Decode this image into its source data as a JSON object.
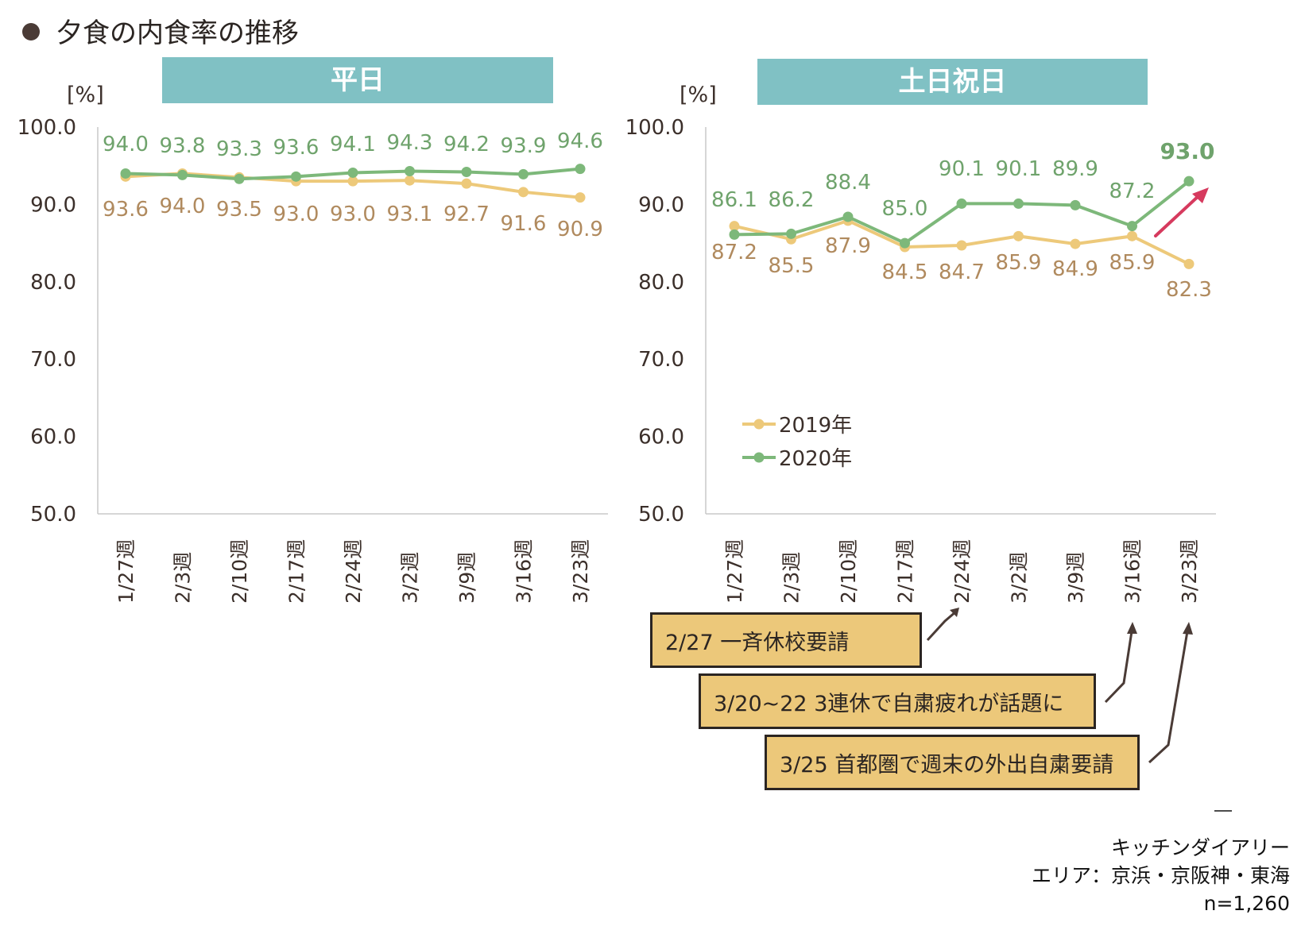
{
  "title": "夕食の内食率の推移",
  "panels": {
    "weekday": {
      "header": "平日",
      "unit": "[%]"
    },
    "weekend": {
      "header": "土日祝日",
      "unit": "[%]"
    }
  },
  "colors": {
    "series_2019": "#edc97a",
    "series_2020": "#7db87a",
    "label_2019": "#b08a5e",
    "label_2020": "#6fa36c",
    "header_bg": "#80c1c4",
    "note_bg": "#ecc87a",
    "trend_arrow": "#d63a5e"
  },
  "chart_data": [
    {
      "type": "line",
      "title": "平日",
      "ylabel": "[%]",
      "ylim": [
        50,
        100
      ],
      "yticks": [
        "100.0",
        "90.0",
        "80.0",
        "70.0",
        "60.0",
        "50.0"
      ],
      "categories": [
        "1/27週",
        "2/3週",
        "2/10週",
        "2/17週",
        "2/24週",
        "3/2週",
        "3/9週",
        "3/16週",
        "3/23週"
      ],
      "series": [
        {
          "name": "2019年",
          "values": [
            93.6,
            94.0,
            93.5,
            93.0,
            93.0,
            93.1,
            92.7,
            91.6,
            90.9
          ],
          "labels": [
            "93.6",
            "94.0",
            "93.5",
            "93.0",
            "93.0",
            "93.1",
            "92.7",
            "91.6",
            "90.9"
          ]
        },
        {
          "name": "2020年",
          "values": [
            94.0,
            93.8,
            93.3,
            93.6,
            94.1,
            94.3,
            94.2,
            93.9,
            94.6
          ],
          "labels": [
            "94.0",
            "93.8",
            "93.3",
            "93.6",
            "94.1",
            "94.3",
            "94.2",
            "93.9",
            "94.6"
          ]
        }
      ]
    },
    {
      "type": "line",
      "title": "土日祝日",
      "ylabel": "[%]",
      "ylim": [
        50,
        100
      ],
      "yticks": [
        "100.0",
        "90.0",
        "80.0",
        "70.0",
        "60.0",
        "50.0"
      ],
      "categories": [
        "1/27週",
        "2/3週",
        "2/10週",
        "2/17週",
        "2/24週",
        "3/2週",
        "3/9週",
        "3/16週",
        "3/23週"
      ],
      "legend": {
        "position": "lower-left",
        "entries": [
          "2019年",
          "2020年"
        ]
      },
      "series": [
        {
          "name": "2019年",
          "values": [
            87.2,
            85.5,
            87.9,
            84.5,
            84.7,
            85.9,
            84.9,
            85.9,
            82.3
          ],
          "labels": [
            "87.2",
            "85.5",
            "87.9",
            "84.5",
            "84.7",
            "85.9",
            "84.9",
            "85.9",
            "82.3"
          ]
        },
        {
          "name": "2020年",
          "values": [
            86.1,
            86.2,
            88.4,
            85.0,
            90.1,
            90.1,
            89.9,
            87.2,
            93.0
          ],
          "labels": [
            "86.1",
            "86.2",
            "88.4",
            "85.0",
            "90.1",
            "90.1",
            "89.9",
            "87.2",
            "93.0"
          ]
        }
      ]
    }
  ],
  "annotations": [
    {
      "text": "2/27  一斉休校要請",
      "points_to": "2/24週"
    },
    {
      "text": "3/20~22  3連休で自粛疲れが話題に",
      "points_to": "3/16週"
    },
    {
      "text": "3/25  首都圏で週末の外出自粛要請",
      "points_to": "3/23週"
    }
  ],
  "source": {
    "line1": "キッチンダイアリー",
    "line2": "エリア：京浜・京阪神・東海",
    "line3": "n=1,260"
  }
}
